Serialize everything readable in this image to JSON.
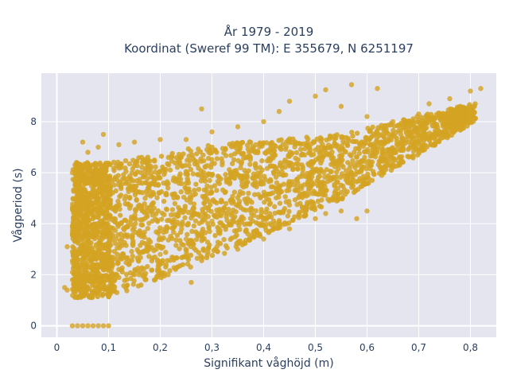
{
  "chart_data": {
    "type": "scatter",
    "title": {
      "line1": "År 1979 - 2019",
      "line2": "Koordinat (Sweref 99 TM): E 355679, N 6251197"
    },
    "xlabel": "Signifikant våghöjd (m)",
    "ylabel": "Vågperiod (s)",
    "xlim": [
      -0.03,
      0.85
    ],
    "ylim": [
      -0.45,
      9.9
    ],
    "x_ticks": [
      0,
      0.1,
      0.2,
      0.3,
      0.4,
      0.5,
      0.6,
      0.7,
      0.8
    ],
    "x_tick_labels": [
      "0",
      "0,1",
      "0,2",
      "0,3",
      "0,4",
      "0,5",
      "0,6",
      "0,7",
      "0,8"
    ],
    "y_ticks": [
      0,
      2,
      4,
      6,
      8
    ],
    "y_tick_labels": [
      "0",
      "2",
      "4",
      "6",
      "8"
    ],
    "grid": true,
    "background": "#e5e5f0",
    "marker_color": "#d4a322",
    "series": [
      {
        "values": [
          [
            0.03,
            0
          ],
          [
            0.04,
            0
          ],
          [
            0.05,
            0
          ],
          [
            0.06,
            0
          ],
          [
            0.07,
            0
          ],
          [
            0.08,
            0
          ],
          [
            0.09,
            0
          ],
          [
            0.1,
            0
          ],
          [
            0.015,
            1.5
          ],
          [
            0.02,
            1.4
          ],
          [
            0.03,
            2.1
          ],
          [
            0.03,
            2.9
          ],
          [
            0.02,
            3.1
          ],
          [
            0.03,
            3.9
          ],
          [
            0.03,
            6.0
          ],
          [
            0.04,
            6.3
          ],
          [
            0.05,
            7.2
          ],
          [
            0.09,
            7.5
          ],
          [
            0.06,
            6.8
          ],
          [
            0.08,
            7.0
          ],
          [
            0.12,
            7.1
          ],
          [
            0.15,
            7.2
          ],
          [
            0.2,
            7.3
          ],
          [
            0.25,
            7.3
          ],
          [
            0.28,
            8.5
          ],
          [
            0.3,
            7.6
          ],
          [
            0.35,
            7.8
          ],
          [
            0.4,
            8.0
          ],
          [
            0.43,
            8.4
          ],
          [
            0.45,
            8.8
          ],
          [
            0.5,
            9.0
          ],
          [
            0.52,
            9.25
          ],
          [
            0.57,
            9.45
          ],
          [
            0.62,
            9.3
          ],
          [
            0.55,
            8.6
          ],
          [
            0.6,
            8.2
          ],
          [
            0.65,
            8.0
          ],
          [
            0.7,
            8.3
          ],
          [
            0.72,
            8.7
          ],
          [
            0.76,
            8.9
          ],
          [
            0.8,
            9.2
          ],
          [
            0.82,
            9.3
          ],
          [
            0.78,
            8.6
          ],
          [
            0.75,
            8.3
          ],
          [
            0.68,
            7.6
          ],
          [
            0.62,
            7.2
          ],
          [
            0.55,
            6.5
          ],
          [
            0.5,
            6.1
          ],
          [
            0.45,
            5.6
          ],
          [
            0.4,
            5.1
          ],
          [
            0.35,
            4.7
          ],
          [
            0.3,
            4.1
          ],
          [
            0.25,
            3.4
          ],
          [
            0.2,
            2.8
          ],
          [
            0.15,
            2.0
          ],
          [
            0.1,
            1.2
          ],
          [
            0.26,
            1.7
          ],
          [
            0.35,
            3.0
          ],
          [
            0.4,
            3.4
          ],
          [
            0.45,
            3.8
          ],
          [
            0.5,
            4.2
          ],
          [
            0.55,
            4.5
          ],
          [
            0.6,
            4.5
          ],
          [
            0.58,
            4.2
          ],
          [
            0.52,
            4.4
          ],
          [
            0.48,
            4.3
          ],
          [
            0.42,
            3.8
          ]
        ]
      }
    ],
    "clusters": [
      {
        "x_min": 0.03,
        "x_max": 0.1,
        "y_min": 1.1,
        "y_max": 6.4
      },
      {
        "x_min": 0.1,
        "x_max": 0.3,
        "y_min": 1.1,
        "y_max": 7.1
      },
      {
        "x_min": 0.3,
        "x_max": 0.55,
        "y_min": 2.6,
        "y_max": 7.5
      },
      {
        "x_min": 0.55,
        "x_max": 0.8,
        "y_min": 4.9,
        "y_max": 8.7
      }
    ]
  }
}
